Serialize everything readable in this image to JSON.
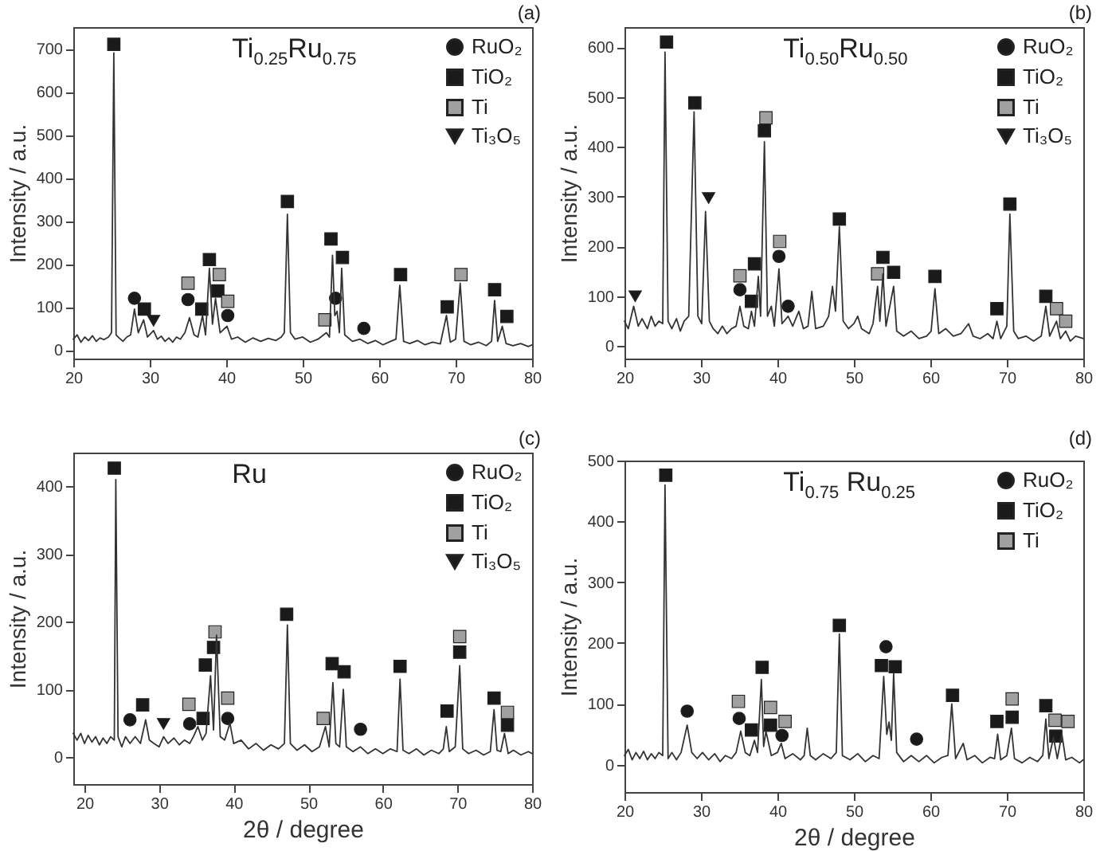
{
  "chart_data": [
    {
      "type": "line",
      "title": "(a)",
      "ylabel": "Intensity / a.u.",
      "annotations": [
        "Ti$_{0.25}$Ru$_{0.75}$"
      ],
      "xlim": [
        20,
        80
      ],
      "xticks": [
        20,
        30,
        40,
        50,
        60,
        70,
        80
      ],
      "ylim": [
        -20,
        750
      ],
      "yticks": [
        0,
        100,
        200,
        300,
        400,
        500,
        600,
        700
      ],
      "legend": "top right",
      "series": [
        {
          "color": "#333333",
          "x": [
            20,
            20.5,
            21,
            21.5,
            22,
            22.5,
            23,
            23.5,
            24,
            24.6,
            25,
            25.3,
            25.6,
            26,
            26.5,
            27,
            27.5,
            28,
            28.5,
            29.2,
            29.7,
            30.5,
            31,
            31.5,
            32,
            32.5,
            33,
            33.5,
            34,
            34.6,
            35.2,
            35.8,
            36.3,
            36.9,
            37.3,
            37.8,
            38.2,
            38.6,
            39.2,
            40.1,
            40.7,
            41.5,
            42.5,
            43.5,
            44.5,
            45.5,
            46.5,
            47.2,
            47.6,
            48,
            48.4,
            49,
            50,
            51,
            52,
            53.1,
            53.5,
            53.9,
            54.2,
            54.5,
            54.8,
            55.1,
            55.5,
            56.5,
            57.5,
            58.5,
            59.5,
            60.5,
            61.5,
            62.2,
            62.7,
            63.2,
            64,
            65,
            66,
            67,
            68,
            68.8,
            69.3,
            70,
            70.6,
            71.1,
            72,
            73,
            74,
            74.7,
            75.1,
            75.5,
            76.1,
            76.6,
            77.5,
            78.5,
            79.5,
            80
          ],
          "values": [
            25,
            35,
            18,
            30,
            22,
            33,
            20,
            28,
            24,
            30,
            40,
            690,
            35,
            28,
            20,
            30,
            35,
            95,
            40,
            70,
            30,
            45,
            25,
            32,
            20,
            28,
            18,
            30,
            25,
            40,
            75,
            35,
            30,
            80,
            35,
            190,
            60,
            120,
            40,
            55,
            25,
            30,
            18,
            28,
            20,
            27,
            22,
            30,
            40,
            315,
            40,
            25,
            30,
            18,
            25,
            40,
            30,
            220,
            80,
            90,
            40,
            190,
            35,
            20,
            25,
            15,
            22,
            12,
            20,
            25,
            150,
            20,
            15,
            22,
            12,
            18,
            14,
            80,
            18,
            25,
            155,
            20,
            12,
            18,
            10,
            20,
            115,
            20,
            55,
            15,
            10,
            15,
            8,
            12
          ]
        },
        {
          "type": "scatter",
          "name": "RuO₂",
          "color": "#1a1a1a",
          "marker": "circle",
          "x": [
            28,
            35,
            40.2,
            54.3,
            58
          ],
          "values": [
            120,
            117,
            80,
            120,
            50
          ]
        },
        {
          "type": "scatter",
          "name": "TiO₂",
          "color": "#1a1a1a",
          "marker": "square",
          "x": [
            25.3,
            29.3,
            36.8,
            37.8,
            38.9,
            48,
            53.7,
            55.2,
            62.8,
            68.9,
            75.1,
            76.7
          ],
          "values": [
            710,
            95,
            95,
            210,
            137,
            345,
            258,
            215,
            175,
            100,
            140,
            78
          ]
        },
        {
          "type": "scatter",
          "name": "Ti",
          "color": "#a0a0a0",
          "marker": "square",
          "x": [
            35,
            39.1,
            40.2,
            52.9,
            70.7
          ],
          "values": [
            155,
            175,
            113,
            70,
            175
          ]
        },
        {
          "type": "scatter",
          "name": "Ti₃O₅",
          "color": "#1a1a1a",
          "marker": "triangle",
          "x": [
            30.5
          ],
          "values": [
            68
          ]
        }
      ]
    },
    {
      "type": "line",
      "title": "(b)",
      "ylabel": "Intensity / a.u.",
      "annotations": [
        "Ti$_{0.50}$Ru$_{0.50}$"
      ],
      "xlim": [
        20,
        80
      ],
      "xticks": [
        20,
        30,
        40,
        50,
        60,
        70,
        80
      ],
      "ylim": [
        -25,
        640
      ],
      "yticks": [
        0,
        100,
        200,
        300,
        400,
        500,
        600
      ],
      "legend": "top right",
      "series": [
        {
          "color": "#333333",
          "x": [
            20,
            20.5,
            21.2,
            21.8,
            22.3,
            23,
            23.5,
            24,
            24.5,
            25,
            25.3,
            25.7,
            26.2,
            26.8,
            27.3,
            27.8,
            28.4,
            29.1,
            29.6,
            30.1,
            30.6,
            31.1,
            31.6,
            32.2,
            32.8,
            33.4,
            34,
            34.6,
            35.1,
            35.6,
            36.2,
            36.6,
            37,
            37.5,
            37.8,
            38.3,
            38.7,
            39.2,
            39.6,
            40.2,
            40.6,
            41.4,
            42,
            42.8,
            43.4,
            44,
            44.5,
            45,
            46,
            46.7,
            47.2,
            47.6,
            48.1,
            48.6,
            49.3,
            50,
            50.5,
            51,
            52,
            52.5,
            53.1,
            53.4,
            53.8,
            54.2,
            55.2,
            55.6,
            56.5,
            57.5,
            58.5,
            59.5,
            60.1,
            60.6,
            61.1,
            62,
            63,
            64,
            65,
            65.6,
            66.5,
            67.5,
            68.2,
            68.7,
            69.2,
            70,
            70.4,
            70.9,
            71.5,
            72.5,
            73.5,
            74.5,
            75.1,
            75.6,
            76.5,
            77,
            77.7,
            78.3,
            79,
            80
          ],
          "values": [
            50,
            35,
            80,
            40,
            55,
            35,
            60,
            40,
            50,
            45,
            590,
            50,
            35,
            55,
            30,
            50,
            60,
            470,
            60,
            45,
            270,
            50,
            35,
            25,
            40,
            25,
            35,
            40,
            80,
            40,
            35,
            70,
            40,
            140,
            60,
            410,
            60,
            80,
            40,
            155,
            45,
            60,
            40,
            70,
            35,
            40,
            110,
            35,
            40,
            60,
            120,
            70,
            240,
            50,
            35,
            45,
            60,
            35,
            25,
            45,
            120,
            50,
            145,
            40,
            120,
            30,
            20,
            30,
            15,
            20,
            30,
            115,
            25,
            35,
            20,
            25,
            45,
            20,
            15,
            25,
            15,
            50,
            15,
            40,
            265,
            30,
            15,
            20,
            10,
            20,
            80,
            20,
            50,
            15,
            30,
            10,
            20,
            15
          ]
        },
        {
          "type": "scatter",
          "name": "RuO₂",
          "color": "#1a1a1a",
          "marker": "circle",
          "x": [
            35.1,
            40.2,
            41.4
          ],
          "values": [
            113,
            180,
            80
          ]
        },
        {
          "type": "scatter",
          "name": "TiO₂",
          "color": "#1a1a1a",
          "marker": "square",
          "x": [
            25.5,
            29.2,
            36.6,
            37,
            38.3,
            48.1,
            53.8,
            55.2,
            60.6,
            68.7,
            70.4,
            75.1
          ],
          "values": [
            610,
            488,
            90,
            165,
            432,
            255,
            178,
            148,
            140,
            75,
            285,
            100
          ]
        },
        {
          "type": "scatter",
          "name": "Ti",
          "color": "#a0a0a0",
          "marker": "square",
          "x": [
            35.1,
            38.5,
            40.3,
            53.1,
            76.5,
            77.7
          ],
          "values": [
            141,
            458,
            210,
            145,
            75,
            50
          ]
        },
        {
          "type": "scatter",
          "name": "Ti₃O₅",
          "color": "#1a1a1a",
          "marker": "triangle",
          "x": [
            21.4,
            31
          ],
          "values": [
            100,
            297
          ]
        }
      ]
    },
    {
      "type": "line",
      "title": "(c)",
      "xlabel": "2θ / degree",
      "ylabel": "Intensity / a.u.",
      "annotations": [
        "Ru"
      ],
      "xlim": [
        18.5,
        80
      ],
      "xticks": [
        20,
        30,
        40,
        50,
        60,
        70,
        80
      ],
      "ylim": [
        -40,
        450
      ],
      "yticks": [
        0,
        100,
        200,
        300,
        400
      ],
      "legend": "top right",
      "series": [
        {
          "color": "#333333",
          "x": [
            18.5,
            19,
            19.5,
            20,
            20.5,
            21,
            21.5,
            22,
            22.5,
            23,
            23.5,
            24,
            24.2,
            24.5,
            25,
            25.5,
            26.1,
            26.8,
            27.5,
            28.2,
            28.7,
            29.3,
            30,
            30.6,
            31.2,
            32,
            32.7,
            33.4,
            34.1,
            34.6,
            35.2,
            35.8,
            36.3,
            36.9,
            37.3,
            37.7,
            38.2,
            38.8,
            39.5,
            40,
            41,
            42,
            43,
            44,
            45,
            46,
            46.8,
            47.2,
            47.6,
            48.5,
            49.5,
            50.5,
            51.5,
            52.3,
            52.8,
            53.3,
            53.7,
            54.2,
            54.7,
            55.1,
            56,
            57,
            58,
            59,
            60,
            61,
            61.9,
            62.3,
            62.7,
            63.5,
            64.5,
            65.5,
            66.5,
            67.5,
            68.1,
            68.5,
            68.9,
            69.7,
            70.3,
            70.7,
            71.5,
            72.5,
            73.5,
            74.4,
            74.9,
            75.3,
            75.8,
            76.3,
            76.8,
            77.5,
            78.5,
            79.5,
            80
          ],
          "values": [
            35,
            25,
            35,
            20,
            32,
            22,
            30,
            18,
            28,
            20,
            30,
            25,
            410,
            30,
            15,
            30,
            20,
            30,
            20,
            55,
            25,
            20,
            15,
            30,
            20,
            28,
            18,
            25,
            20,
            30,
            45,
            25,
            35,
            120,
            40,
            180,
            30,
            25,
            50,
            20,
            25,
            12,
            20,
            10,
            18,
            12,
            20,
            195,
            20,
            10,
            18,
            8,
            15,
            45,
            15,
            110,
            20,
            15,
            100,
            15,
            8,
            15,
            5,
            12,
            5,
            12,
            8,
            115,
            10,
            5,
            12,
            3,
            10,
            5,
            12,
            45,
            8,
            15,
            135,
            12,
            5,
            10,
            3,
            8,
            70,
            10,
            8,
            35,
            5,
            10,
            3,
            8,
            5
          ]
        },
        {
          "type": "scatter",
          "name": "RuO₂",
          "color": "#1a1a1a",
          "marker": "circle",
          "x": [
            26.1,
            34.1,
            39.2,
            57
          ],
          "values": [
            55,
            49,
            57,
            41
          ]
        },
        {
          "type": "scatter",
          "name": "TiO₂",
          "color": "#1a1a1a",
          "marker": "square",
          "x": [
            24,
            27.8,
            35.9,
            36.2,
            37.3,
            47.1,
            53.2,
            54.8,
            62.3,
            68.6,
            70.3,
            74.9,
            76.7
          ],
          "values": [
            427,
            77,
            57,
            136,
            162,
            211,
            138,
            126,
            134,
            68,
            155,
            87,
            47
          ]
        },
        {
          "type": "scatter",
          "name": "Ti",
          "color": "#a0a0a0",
          "marker": "square",
          "x": [
            34,
            37.5,
            39.2,
            52,
            70.3,
            76.7
          ],
          "values": [
            78,
            185,
            87,
            57,
            178,
            66
          ]
        },
        {
          "type": "scatter",
          "name": "Ti₃O₅",
          "color": "#1a1a1a",
          "marker": "triangle",
          "x": [
            30.6
          ],
          "values": [
            49
          ]
        }
      ]
    },
    {
      "type": "line",
      "title": "(d)",
      "xlabel": "2θ / degree",
      "ylabel": "Intensity / a.u.",
      "annotations": [
        "Ti$_{0.75}$ Ru$_{0.25}$"
      ],
      "xlim": [
        20,
        80
      ],
      "xticks": [
        20,
        30,
        40,
        50,
        60,
        70,
        80
      ],
      "ylim": [
        -45,
        500
      ],
      "yticks": [
        0,
        100,
        200,
        300,
        400,
        500
      ],
      "legend": "top right",
      "series": [
        {
          "color": "#333333",
          "x": [
            20,
            20.5,
            21,
            21.5,
            22,
            22.5,
            23,
            23.5,
            24,
            24.5,
            25,
            25.3,
            25.7,
            26.2,
            26.8,
            27.4,
            28.2,
            28.8,
            29.5,
            30.2,
            31,
            31.8,
            32.5,
            33.2,
            34,
            34.6,
            35.2,
            35.8,
            36.4,
            37,
            37.4,
            37.9,
            38.2,
            38.5,
            39.2,
            40,
            40.5,
            41,
            42,
            43,
            43.5,
            43.9,
            44.3,
            45,
            46,
            47,
            47.7,
            48.1,
            48.5,
            49.5,
            50.5,
            51.5,
            52.5,
            53.3,
            53.9,
            54.3,
            54.6,
            54.9,
            55.2,
            55.6,
            56.5,
            57.5,
            58.5,
            59.5,
            60.5,
            61.5,
            62.3,
            62.8,
            63.3,
            64.3,
            64.8,
            65.8,
            66.8,
            67.8,
            68.4,
            68.8,
            69.2,
            70,
            70.6,
            71,
            72,
            73,
            74,
            74.7,
            75.1,
            75.5,
            76.1,
            76.6,
            77.2,
            77.7,
            78.5,
            79.5,
            80
          ],
          "values": [
            15,
            25,
            8,
            20,
            10,
            22,
            8,
            18,
            10,
            20,
            15,
            460,
            10,
            20,
            8,
            20,
            65,
            20,
            10,
            20,
            8,
            18,
            5,
            15,
            10,
            20,
            55,
            20,
            15,
            40,
            20,
            140,
            30,
            55,
            15,
            20,
            35,
            10,
            18,
            8,
            15,
            60,
            15,
            8,
            18,
            10,
            20,
            215,
            15,
            8,
            18,
            5,
            15,
            10,
            145,
            50,
            70,
            40,
            150,
            20,
            5,
            15,
            5,
            15,
            3,
            12,
            15,
            100,
            10,
            35,
            8,
            15,
            3,
            12,
            10,
            50,
            8,
            15,
            60,
            10,
            3,
            12,
            5,
            15,
            75,
            10,
            45,
            10,
            50,
            8,
            12,
            3,
            8
          ]
        },
        {
          "type": "scatter",
          "name": "RuO₂",
          "color": "#1a1a1a",
          "marker": "circle",
          "x": [
            28.2,
            35,
            40.6,
            54.2,
            58.2
          ],
          "values": [
            88,
            76,
            48,
            194,
            42
          ]
        },
        {
          "type": "scatter",
          "name": "TiO₂",
          "color": "#1a1a1a",
          "marker": "square",
          "x": [
            25.4,
            36.6,
            38,
            39.1,
            48.1,
            53.6,
            55.4,
            62.9,
            68.7,
            70.7,
            75.1,
            76.4
          ],
          "values": [
            476,
            57,
            160,
            65,
            229,
            163,
            161,
            114,
            71,
            78,
            97,
            47
          ]
        },
        {
          "type": "scatter",
          "name": "Ti",
          "color": "#a0a0a0",
          "marker": "square",
          "x": [
            34.9,
            39.1,
            41,
            70.7,
            76.3,
            78
          ],
          "values": [
            104,
            94,
            71,
            108,
            73,
            71
          ]
        }
      ]
    }
  ]
}
